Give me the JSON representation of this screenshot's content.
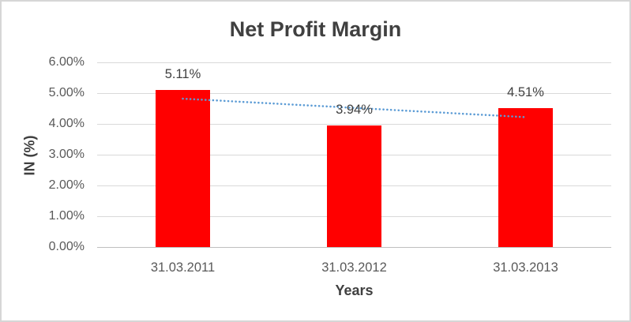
{
  "chart_data": {
    "type": "bar",
    "title": "Net Profit Margin",
    "xlabel": "Years",
    "ylabel": "IN (%)",
    "categories": [
      "31.03.2011",
      "31.03.2012",
      "31.03.2013"
    ],
    "values": [
      5.11,
      3.94,
      4.51
    ],
    "data_labels": [
      "5.11%",
      "3.94%",
      "4.51%"
    ],
    "y_ticks": [
      "0.00%",
      "1.00%",
      "2.00%",
      "3.00%",
      "4.00%",
      "5.00%",
      "6.00%"
    ],
    "ylim": [
      0,
      6
    ],
    "y_tick_step": 1,
    "grid": true,
    "legend": "none",
    "trendline": {
      "type": "linear",
      "style": "dotted",
      "color": "#5B9BD5"
    },
    "colors": {
      "bar": "#FF0000",
      "title_text": "#404040",
      "tick_text": "#595959",
      "gridline": "#D9D9D9",
      "axis_line": "#BFBFBF",
      "border": "#D6D6D6"
    }
  }
}
